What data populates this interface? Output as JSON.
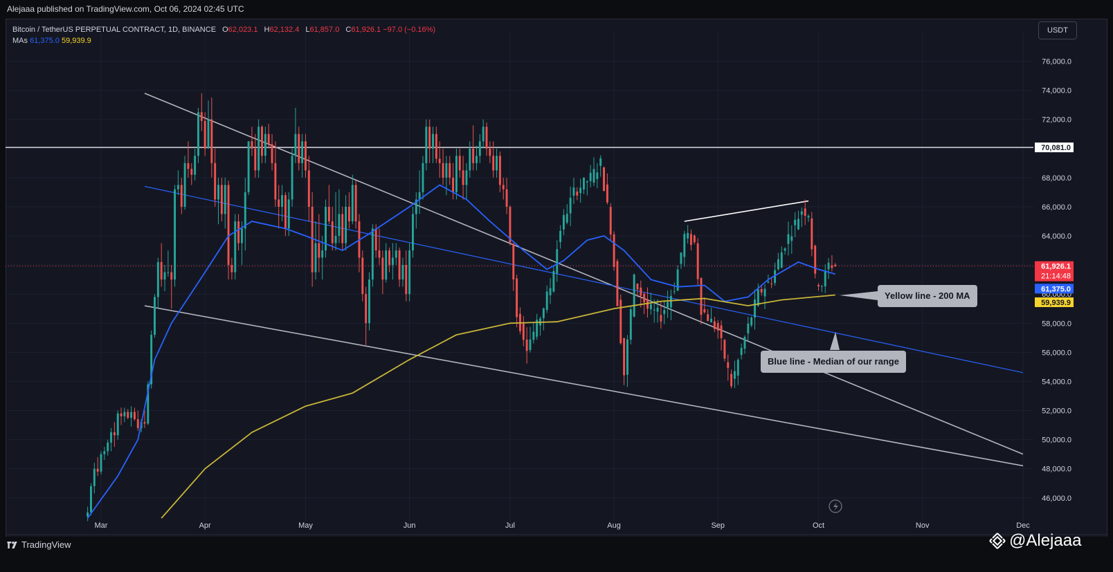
{
  "header": {
    "published": "Alejaaa published on TradingView.com, Oct 06, 2024 02:45 UTC"
  },
  "legend": {
    "symbol": "Bitcoin / TetherUS PERPETUAL CONTRACT, 1D, BINANCE",
    "o_label": "O",
    "o_value": "62,023.1",
    "h_label": "H",
    "h_value": "62,132.4",
    "l_label": "L",
    "l_value": "61,857.0",
    "c_label": "C",
    "c_value": "61,926.1",
    "change": "−97.0 (−0.16%)",
    "mas_label": "MAs",
    "ma1_value": "61,375.0",
    "ma2_value": "59,939.9"
  },
  "currency_button": "USDT",
  "footer": {
    "brand": "TradingView",
    "author": "@Alejaaa"
  },
  "callouts": {
    "yellow": "Yellow line - 200 MA",
    "blue": "Blue line - Median of our range"
  },
  "colors": {
    "background": "#141722",
    "up": "#26a69a",
    "down": "#ef5350",
    "ma_short": "#2962ff",
    "ma_200": "#c9b637",
    "channel": "#b2b5be"
  },
  "chart_data": {
    "type": "candlestick",
    "symbol": "BTCUSDT.P",
    "interval": "1D",
    "x_tick_labels": [
      "Mar",
      "Apr",
      "May",
      "Jun",
      "Jul",
      "Aug",
      "Sep",
      "Oct",
      "Nov",
      "Dec"
    ],
    "y_tick_labels": [
      "46,000.0",
      "48,000.0",
      "50,000.0",
      "52,000.0",
      "54,000.0",
      "56,000.0",
      "58,000.0",
      "60,000.0",
      "62,000.0",
      "64,000.0",
      "66,000.0",
      "68,000.0",
      "70,000.0",
      "72,000.0",
      "74,000.0",
      "76,000.0"
    ],
    "ylim": [
      44800,
      77500
    ],
    "horizontal_line": {
      "value": 70081.0,
      "label": "70,081.0"
    },
    "last_price": {
      "value": 61926.1,
      "label": "61,926.1",
      "countdown": "21:14:48"
    },
    "ma_short_last": {
      "value": 61375.0,
      "label": "61,375.0"
    },
    "ma_200_last": {
      "value": 59939.9,
      "label": "59,939.9"
    },
    "ohlc_last": {
      "open": 62023.1,
      "high": 62132.4,
      "low": 61857.0,
      "close": 61926.1
    },
    "ma_short_anchor": [
      [
        "Feb 26",
        44600
      ],
      [
        "Mar 6",
        47500
      ],
      [
        "Mar 12",
        50000
      ],
      [
        "Mar 17",
        55500
      ],
      [
        "Mar 22",
        58000
      ],
      [
        "Apr 1",
        61500
      ],
      [
        "Apr 8",
        64000
      ],
      [
        "Apr 15",
        65000
      ],
      [
        "Apr 25",
        64500
      ],
      [
        "May 1",
        64000
      ],
      [
        "May 12",
        63000
      ],
      [
        "May 19",
        64000
      ],
      [
        "Jun 1",
        66000
      ],
      [
        "Jun 10",
        67500
      ],
      [
        "Jun 18",
        66500
      ],
      [
        "Jun 25",
        65000
      ],
      [
        "Jul 5",
        63000
      ],
      [
        "Jul 12",
        61700
      ],
      [
        "Jul 17",
        62300
      ],
      [
        "Jul 24",
        63700
      ],
      [
        "Jul 29",
        64000
      ],
      [
        "Aug 4",
        63000
      ],
      [
        "Aug 12",
        61000
      ],
      [
        "Aug 20",
        60500
      ],
      [
        "Aug 28",
        60600
      ],
      [
        "Sep 3",
        59500
      ],
      [
        "Sep 10",
        59800
      ],
      [
        "Sep 16",
        61000
      ],
      [
        "Sep 25",
        62200
      ],
      [
        "Oct 1",
        61700
      ],
      [
        "Oct 6",
        61375
      ]
    ],
    "ma_200_anchor": [
      [
        "Mar 19",
        44600
      ],
      [
        "Apr 1",
        48000
      ],
      [
        "Apr 15",
        50500
      ],
      [
        "May 1",
        52300
      ],
      [
        "May 15",
        53200
      ],
      [
        "Jun 1",
        55500
      ],
      [
        "Jun 15",
        57200
      ],
      [
        "Jul 1",
        58000
      ],
      [
        "Jul 15",
        58100
      ],
      [
        "Aug 1",
        59000
      ],
      [
        "Aug 15",
        59500
      ],
      [
        "Aug 28",
        59700
      ],
      [
        "Sep 10",
        59200
      ],
      [
        "Sep 20",
        59600
      ],
      [
        "Oct 6",
        59940
      ]
    ],
    "channel_upper": [
      [
        "Mar 14",
        73800
      ],
      [
        "Dec 1",
        49000
      ]
    ],
    "channel_lower": [
      [
        "Mar 14",
        59200
      ],
      [
        "Dec 1",
        48200
      ]
    ],
    "channel_median": [
      [
        "Mar 14",
        67400
      ],
      [
        "Dec 1",
        54600
      ]
    ],
    "white_trend": [
      [
        "Aug 22",
        65000
      ],
      [
        "Sep 28",
        66400
      ]
    ],
    "candles": [
      [
        "Feb 26",
        44700,
        45400,
        44400,
        45000
      ],
      [
        "Feb 27",
        45000,
        47000,
        44800,
        46800
      ],
      [
        "Feb 28",
        46800,
        48400,
        46300,
        48000
      ],
      [
        "Feb 29",
        48000,
        48800,
        47500,
        47800
      ],
      [
        "Mar 1",
        47800,
        49200,
        47600,
        49000
      ],
      [
        "Mar 2",
        49000,
        49500,
        48600,
        49200
      ],
      [
        "Mar 3",
        49200,
        50000,
        48900,
        49800
      ],
      [
        "Mar 4",
        49800,
        50800,
        49200,
        50500
      ],
      [
        "Mar 5",
        50500,
        51200,
        49500,
        50300
      ],
      [
        "Mar 6",
        50300,
        52000,
        50000,
        51800
      ],
      [
        "Mar 7",
        51800,
        52200,
        51000,
        51600
      ],
      [
        "Mar 8",
        51600,
        52200,
        51200,
        51900
      ],
      [
        "Mar 9",
        51900,
        52100,
        51400,
        51500
      ],
      [
        "Mar 10",
        51500,
        52300,
        50900,
        51900
      ],
      [
        "Mar 11",
        51900,
        52200,
        51300,
        51400
      ],
      [
        "Mar 12",
        51400,
        52000,
        50600,
        50800
      ],
      [
        "Mar 13",
        50800,
        51400,
        50500,
        51200
      ],
      [
        "Mar 14",
        51200,
        52000,
        50800,
        51100
      ],
      [
        "Mar 15",
        51100,
        54000,
        51000,
        53800
      ],
      [
        "Mar 16",
        53800,
        57500,
        53500,
        57200
      ],
      [
        "Mar 17",
        57200,
        60000,
        57000,
        59800
      ],
      [
        "Mar 18",
        59800,
        62500,
        59000,
        62200
      ],
      [
        "Mar 19",
        62200,
        63500,
        60500,
        61000
      ],
      [
        "Mar 20",
        61000,
        62000,
        60200,
        61500
      ],
      [
        "Mar 21",
        61500,
        63000,
        61200,
        61500
      ],
      [
        "Mar 22",
        61500,
        62000,
        59000,
        61000
      ],
      [
        "Mar 23",
        61000,
        67500,
        60500,
        67200
      ],
      [
        "Mar 24",
        67200,
        68500,
        66800,
        67500
      ],
      [
        "Mar 25",
        67500,
        68000,
        65500,
        66000
      ],
      [
        "Mar 26",
        66000,
        69500,
        65800,
        69000
      ],
      [
        "Mar 27",
        69000,
        70500,
        68000,
        68600
      ],
      [
        "Mar 28",
        68600,
        69000,
        67500,
        68200
      ],
      [
        "Mar 29",
        68200,
        70000,
        67800,
        69500
      ],
      [
        "Mar 30",
        69500,
        72800,
        69000,
        72500
      ],
      [
        "Mar 31",
        72500,
        73800,
        71200,
        71900
      ],
      [
        "Apr 1",
        71900,
        72500,
        69500,
        70000
      ],
      [
        "Apr 2",
        70000,
        73300,
        70000,
        72000
      ],
      [
        "Apr 3",
        72000,
        73500,
        68000,
        69000
      ],
      [
        "Apr 4",
        69000,
        70000,
        66000,
        66500
      ],
      [
        "Apr 5",
        66500,
        68000,
        64800,
        67500
      ],
      [
        "Apr 6",
        67500,
        68000,
        65000,
        65500
      ],
      [
        "Apr 7",
        65500,
        68000,
        64500,
        67500
      ],
      [
        "Apr 8",
        67500,
        67800,
        61000,
        62000
      ],
      [
        "Apr 9",
        62000,
        62500,
        61000,
        61500
      ],
      [
        "Apr 10",
        61500,
        65500,
        61000,
        65000
      ],
      [
        "Apr 11",
        65000,
        65500,
        63000,
        63500
      ],
      [
        "Apr 12",
        63500,
        65000,
        62000,
        64500
      ],
      [
        "Apr 13",
        64500,
        68000,
        63000,
        67000
      ],
      [
        "Apr 14",
        67000,
        70500,
        66800,
        70500
      ],
      [
        "Apr 15",
        70500,
        71500,
        69500,
        70000
      ],
      [
        "Apr 16",
        70000,
        71000,
        68000,
        68500
      ],
      [
        "Apr 17",
        68500,
        72000,
        68000,
        71500
      ],
      [
        "Apr 18",
        71500,
        71600,
        69000,
        69500
      ],
      [
        "Apr 19",
        69500,
        71500,
        69000,
        71000
      ],
      [
        "Apr 20",
        71000,
        71700,
        70000,
        70300
      ],
      [
        "Apr 21",
        70300,
        71000,
        68500,
        69000
      ],
      [
        "Apr 22",
        69000,
        70500,
        66000,
        66500
      ],
      [
        "Apr 23",
        66500,
        67500,
        64500,
        66000
      ],
      [
        "Apr 24",
        66000,
        67500,
        65000,
        66800
      ],
      [
        "Apr 25",
        66800,
        67000,
        64000,
        64500
      ],
      [
        "Apr 26",
        64500,
        67000,
        64000,
        66500
      ],
      [
        "Apr 27",
        66500,
        70000,
        66000,
        69500
      ],
      [
        "Apr 28",
        69500,
        72800,
        69000,
        71000
      ],
      [
        "Apr 29",
        71000,
        71500,
        68500,
        69000
      ],
      [
        "Apr 30",
        69000,
        71000,
        68000,
        70500
      ],
      [
        "May 1",
        70500,
        71000,
        68000,
        68500
      ],
      [
        "May 2",
        68500,
        69500,
        65000,
        66000
      ],
      [
        "May 3",
        66000,
        67000,
        60500,
        61500
      ],
      [
        "May 4",
        61500,
        65000,
        61000,
        63500
      ],
      [
        "May 5",
        63500,
        65500,
        61500,
        62500
      ],
      [
        "May 6",
        62500,
        64000,
        61000,
        63000
      ],
      [
        "May 7",
        63000,
        66500,
        62500,
        66000
      ],
      [
        "May 8",
        66000,
        67500,
        64800,
        65000
      ],
      [
        "May 9",
        65000,
        66000,
        63000,
        63500
      ],
      [
        "May 10",
        63500,
        67000,
        63000,
        64000
      ],
      [
        "May 11",
        64000,
        67200,
        63500,
        65500
      ],
      [
        "May 12",
        65500,
        66000,
        63000,
        63500
      ],
      [
        "May 13",
        63500,
        66800,
        63000,
        66000
      ],
      [
        "May 14",
        66000,
        67000,
        64500,
        65000
      ],
      [
        "May 15",
        65000,
        68200,
        64800,
        67500
      ],
      [
        "May 16",
        67500,
        67800,
        64500,
        65000
      ],
      [
        "May 17",
        65000,
        65500,
        61500,
        62500
      ],
      [
        "May 18",
        62500,
        63000,
        59500,
        60000
      ],
      [
        "May 19",
        60000,
        60500,
        56500,
        58000
      ],
      [
        "May 20",
        58000,
        61500,
        57500,
        61000
      ],
      [
        "May 21",
        61000,
        64800,
        60500,
        64500
      ],
      [
        "May 22",
        64500,
        64800,
        62500,
        63000
      ],
      [
        "May 23",
        63000,
        64500,
        62000,
        62500
      ],
      [
        "May 24",
        62500,
        63000,
        60000,
        61000
      ],
      [
        "May 25",
        61000,
        63500,
        60800,
        63000
      ],
      [
        "May 26",
        63000,
        63200,
        61500,
        62000
      ],
      [
        "May 27",
        62000,
        63500,
        61000,
        62500
      ],
      [
        "May 28",
        62500,
        63500,
        62000,
        63000
      ],
      [
        "May 29",
        63000,
        63200,
        60500,
        61000
      ],
      [
        "May 30",
        61000,
        62500,
        60500,
        62000
      ],
      [
        "May 31",
        62000,
        63000,
        59500,
        60000
      ],
      [
        "Jun 1",
        60000,
        63500,
        59500,
        63000
      ],
      [
        "Jun 2",
        63000,
        66000,
        62500,
        65500
      ],
      [
        "Jun 3",
        65500,
        67000,
        64500,
        66500
      ],
      [
        "Jun 4",
        66500,
        68500,
        65500,
        67000
      ],
      [
        "Jun 5",
        67000,
        69500,
        66500,
        69000
      ],
      [
        "Jun 6",
        69000,
        72000,
        68500,
        71500
      ],
      [
        "Jun 7",
        71500,
        72000,
        69000,
        70000
      ],
      [
        "Jun 8",
        70000,
        71500,
        69000,
        71000
      ],
      [
        "Jun 9",
        71000,
        71500,
        69000,
        69300
      ],
      [
        "Jun 10",
        69300,
        70500,
        68000,
        69000
      ],
      [
        "Jun 11",
        69000,
        70000,
        67500,
        68000
      ],
      [
        "Jun 12",
        68000,
        69500,
        66800,
        69000
      ],
      [
        "Jun 13",
        69000,
        69500,
        67500,
        68000
      ],
      [
        "Jun 14",
        68000,
        69000,
        66500,
        67000
      ],
      [
        "Jun 15",
        67000,
        70000,
        66500,
        69500
      ],
      [
        "Jun 16",
        69500,
        70000,
        68000,
        68500
      ],
      [
        "Jun 17",
        68500,
        69500,
        66500,
        67500
      ],
      [
        "Jun 18",
        67500,
        69000,
        66500,
        68500
      ],
      [
        "Jun 19",
        68500,
        70500,
        68000,
        70000
      ],
      [
        "Jun 20",
        70000,
        71600,
        68500,
        69000
      ],
      [
        "Jun 21",
        69000,
        70200,
        68500,
        69500
      ],
      [
        "Jun 22",
        69500,
        71000,
        69000,
        70500
      ],
      [
        "Jun 23",
        70500,
        72000,
        70000,
        71500
      ],
      [
        "Jun 24",
        71500,
        71800,
        69500,
        70000
      ],
      [
        "Jun 25",
        70000,
        70500,
        69000,
        69500
      ],
      [
        "Jun 26",
        69500,
        70500,
        68000,
        68500
      ],
      [
        "Jun 27",
        68500,
        70000,
        68000,
        69500
      ],
      [
        "Jun 28",
        69500,
        69800,
        67000,
        67500
      ],
      [
        "Jun 29",
        67500,
        68000,
        66500,
        67200
      ],
      [
        "Jun 30",
        67200,
        68000,
        65500,
        66000
      ]
    ]
  }
}
